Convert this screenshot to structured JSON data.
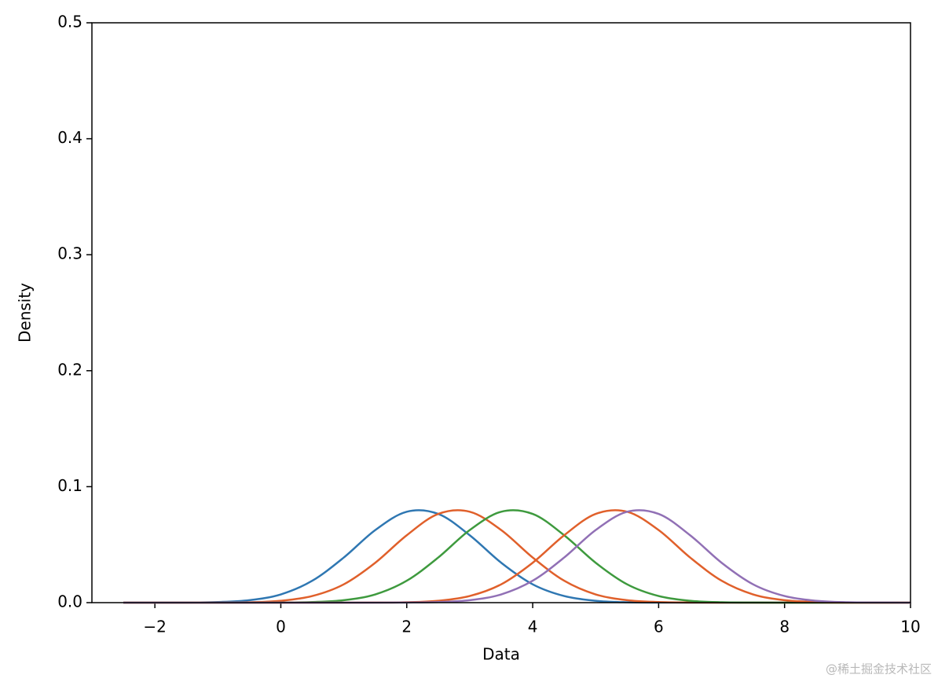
{
  "chart_data": {
    "type": "line",
    "xlabel": "Data",
    "ylabel": "Density",
    "watermark": "@稀土掘金技术社区",
    "x": [
      -2.5,
      -2,
      -1.5,
      -1,
      -0.5,
      0,
      0.5,
      1,
      1.5,
      2,
      2.5,
      3,
      3.5,
      4,
      4.5,
      5,
      5.5,
      6,
      6.5,
      7,
      7.5,
      8,
      8.5,
      9,
      9.5,
      10
    ],
    "series": [
      {
        "color": "#2f77b2",
        "values": [
          0,
          0,
          0.0001,
          0.0005,
          0.0021,
          0.0071,
          0.0189,
          0.0389,
          0.0626,
          0.0784,
          0.0765,
          0.0581,
          0.0344,
          0.0158,
          0.0057,
          0.0016,
          0.0003,
          0.0001,
          0,
          0,
          0,
          0,
          0,
          0,
          0,
          0
        ]
      },
      {
        "color": "#e0602b",
        "values": [
          0,
          0,
          0,
          0.0001,
          0.0003,
          0.0016,
          0.0057,
          0.0158,
          0.0344,
          0.0581,
          0.0765,
          0.0784,
          0.0626,
          0.0389,
          0.0189,
          0.0071,
          0.0021,
          0.0005,
          0.0001,
          0,
          0,
          0,
          0,
          0,
          0,
          0
        ]
      },
      {
        "color": "#3e9a3e",
        "values": [
          0,
          0,
          0,
          0,
          0,
          0.0001,
          0.0005,
          0.0021,
          0.0071,
          0.0189,
          0.0389,
          0.0626,
          0.0784,
          0.0765,
          0.0581,
          0.0344,
          0.0158,
          0.0057,
          0.0016,
          0.0003,
          0.0001,
          0,
          0,
          0,
          0,
          0
        ]
      },
      {
        "color": "#e0602b",
        "values": [
          0,
          0,
          0,
          0,
          0,
          0,
          0,
          0,
          0.0001,
          0.0003,
          0.0016,
          0.0057,
          0.0158,
          0.0344,
          0.0581,
          0.0765,
          0.0784,
          0.0626,
          0.0389,
          0.0189,
          0.0071,
          0.0021,
          0.0005,
          0.0001,
          0,
          0
        ]
      },
      {
        "color": "#9170b5",
        "values": [
          0,
          0,
          0,
          0,
          0,
          0,
          0,
          0,
          0,
          0.0001,
          0.0005,
          0.0021,
          0.0071,
          0.0189,
          0.0389,
          0.0626,
          0.0784,
          0.0765,
          0.0581,
          0.0344,
          0.0158,
          0.0057,
          0.0016,
          0.0003,
          0.0001,
          0
        ]
      }
    ],
    "xlim": [
      -3,
      10
    ],
    "xticks": [
      {
        "value": -2,
        "label": "−2"
      },
      0,
      2,
      4,
      6,
      8,
      10
    ],
    "ylim": [
      0,
      0.5
    ],
    "yticks": [
      {
        "value": 0,
        "label": "0.0"
      },
      0.1,
      0.2,
      0.3,
      0.4,
      0.5
    ],
    "grid": false
  }
}
